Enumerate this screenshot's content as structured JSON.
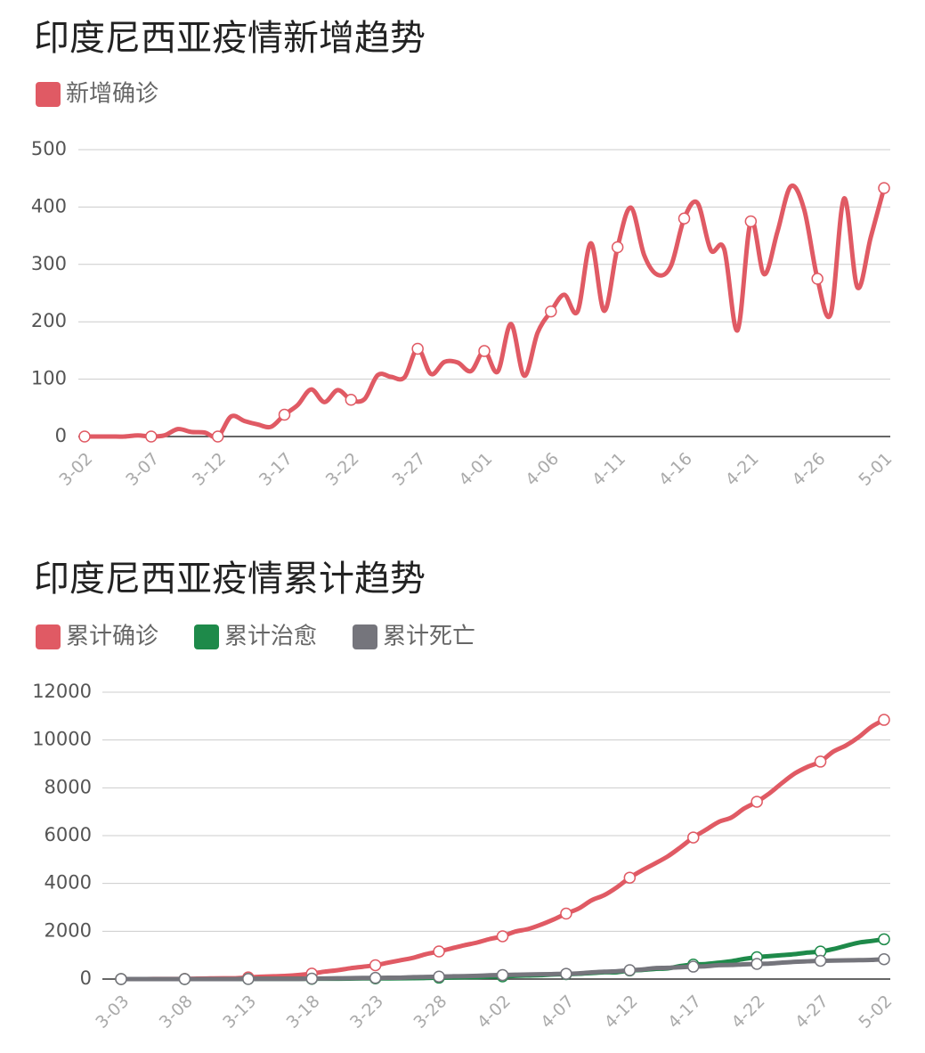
{
  "chart_data": [
    {
      "type": "line",
      "title": "印度尼西亚疫情新增趋势",
      "categories": [
        "3-02",
        null,
        null,
        null,
        null,
        "3-07",
        null,
        null,
        null,
        null,
        "3-12",
        null,
        null,
        null,
        null,
        "3-17",
        null,
        null,
        null,
        null,
        "3-22",
        null,
        null,
        null,
        null,
        "3-27",
        null,
        null,
        null,
        null,
        "4-01",
        null,
        null,
        null,
        null,
        "4-06",
        null,
        null,
        null,
        null,
        "4-11",
        null,
        null,
        null,
        null,
        "4-16",
        null,
        null,
        null,
        null,
        "4-21",
        null,
        null,
        null,
        null,
        "4-26",
        null,
        null,
        null,
        null,
        "5-01"
      ],
      "series": [
        {
          "name": "新增确诊",
          "color": "#e05a64",
          "values": [
            0,
            0,
            0,
            0,
            2,
            0,
            2,
            13,
            8,
            7,
            0,
            35,
            27,
            21,
            17,
            38,
            55,
            82,
            60,
            81,
            64,
            65,
            107,
            104,
            103,
            153,
            109,
            130,
            129,
            114,
            149,
            113,
            196,
            106,
            181,
            218,
            247,
            218,
            337,
            219,
            330,
            399,
            316,
            282,
            297,
            380,
            407,
            325,
            327,
            185,
            375,
            283,
            357,
            436,
            396,
            275,
            214,
            415,
            260,
            347,
            433
          ]
        }
      ],
      "ylim": [
        0,
        500
      ],
      "yticks": [
        0,
        100,
        200,
        300,
        400,
        500
      ],
      "grid": true
    },
    {
      "type": "line",
      "title": "印度尼西亚疫情累计趋势",
      "categories": [
        "3-03",
        null,
        null,
        null,
        null,
        "3-08",
        null,
        null,
        null,
        null,
        "3-13",
        null,
        null,
        null,
        null,
        "3-18",
        null,
        null,
        null,
        null,
        "3-23",
        null,
        null,
        null,
        null,
        "3-28",
        null,
        null,
        null,
        null,
        "4-02",
        null,
        null,
        null,
        null,
        "4-07",
        null,
        null,
        null,
        null,
        "4-12",
        null,
        null,
        null,
        null,
        "4-17",
        null,
        null,
        null,
        null,
        "4-22",
        null,
        null,
        null,
        null,
        "4-27",
        null,
        null,
        null,
        null,
        "5-02"
      ],
      "series": [
        {
          "name": "累计确诊",
          "color": "#e05a64",
          "values": [
            2,
            2,
            2,
            4,
            4,
            6,
            19,
            27,
            34,
            34,
            69,
            96,
            117,
            134,
            172,
            227,
            309,
            369,
            450,
            514,
            579,
            686,
            790,
            893,
            1046,
            1155,
            1285,
            1414,
            1528,
            1677,
            1790,
            1986,
            2092,
            2273,
            2491,
            2738,
            2956,
            3293,
            3512,
            3842,
            4241,
            4557,
            4839,
            5136,
            5516,
            5923,
            6248,
            6575,
            6760,
            7135,
            7418,
            7775,
            8211,
            8607,
            8882,
            9096,
            9511,
            9771,
            10118,
            10551,
            10843
          ]
        },
        {
          "name": "累计治愈",
          "color": "#1e8a4a",
          "values": [
            0,
            0,
            0,
            0,
            0,
            0,
            0,
            0,
            0,
            0,
            5,
            8,
            8,
            8,
            9,
            11,
            15,
            15,
            20,
            29,
            30,
            30,
            31,
            35,
            46,
            59,
            64,
            75,
            81,
            103,
            112,
            134,
            150,
            164,
            192,
            204,
            222,
            252,
            282,
            286,
            359,
            380,
            426,
            446,
            548,
            607,
            631,
            686,
            747,
            842,
            913,
            960,
            1002,
            1042,
            1107,
            1151,
            1254,
            1391,
            1522,
            1591,
            1665
          ]
        },
        {
          "name": "累计死亡",
          "color": "#75757c",
          "values": [
            0,
            0,
            0,
            0,
            0,
            0,
            0,
            0,
            1,
            1,
            4,
            5,
            5,
            5,
            5,
            19,
            25,
            32,
            38,
            48,
            49,
            55,
            58,
            78,
            87,
            102,
            114,
            122,
            136,
            157,
            170,
            181,
            191,
            198,
            209,
            221,
            240,
            280,
            306,
            327,
            373,
            399,
            459,
            469,
            496,
            520,
            535,
            582,
            590,
            616,
            635,
            647,
            689,
            720,
            743,
            765,
            773,
            784,
            792,
            800,
            831
          ]
        }
      ],
      "ylim": [
        0,
        12000
      ],
      "yticks": [
        0,
        2000,
        4000,
        6000,
        8000,
        10000,
        12000
      ],
      "grid": true
    }
  ]
}
